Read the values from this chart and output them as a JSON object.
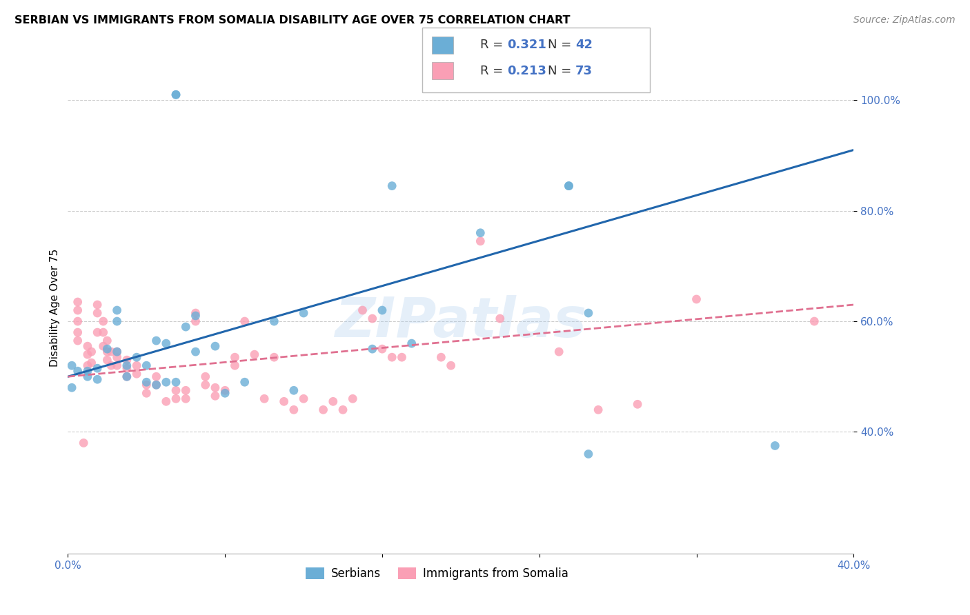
{
  "title": "SERBIAN VS IMMIGRANTS FROM SOMALIA DISABILITY AGE OVER 75 CORRELATION CHART",
  "source": "Source: ZipAtlas.com",
  "ylabel": "Disability Age Over 75",
  "x_min": 0.0,
  "x_max": 0.4,
  "y_min": 0.18,
  "y_max": 1.07,
  "x_tick_positions": [
    0.0,
    0.08,
    0.16,
    0.24,
    0.32,
    0.4
  ],
  "x_tick_labels": [
    "0.0%",
    "",
    "",
    "",
    "",
    "40.0%"
  ],
  "y_tick_positions": [
    0.4,
    0.6,
    0.8,
    1.0
  ],
  "y_tick_labels": [
    "40.0%",
    "60.0%",
    "80.0%",
    "100.0%"
  ],
  "legend_r_blue": "0.321",
  "legend_n_blue": "42",
  "legend_r_pink": "0.213",
  "legend_n_pink": "73",
  "legend_label_blue": "Serbians",
  "legend_label_pink": "Immigrants from Somalia",
  "blue_color": "#6baed6",
  "pink_color": "#fa9fb5",
  "blue_line_color": "#2166ac",
  "pink_line_color": "#e07090",
  "watermark": "ZIPatlas",
  "blue_line_x": [
    0.0,
    0.4
  ],
  "blue_line_y": [
    0.5,
    0.91
  ],
  "pink_line_x": [
    0.0,
    0.4
  ],
  "pink_line_y": [
    0.5,
    0.63
  ],
  "blue_scatter_x": [
    0.055,
    0.055,
    0.165,
    0.21,
    0.255,
    0.255,
    0.265,
    0.002,
    0.005,
    0.01,
    0.015,
    0.015,
    0.02,
    0.025,
    0.025,
    0.025,
    0.03,
    0.03,
    0.035,
    0.04,
    0.04,
    0.045,
    0.045,
    0.05,
    0.05,
    0.055,
    0.06,
    0.065,
    0.065,
    0.075,
    0.08,
    0.09,
    0.105,
    0.115,
    0.12,
    0.155,
    0.16,
    0.175,
    0.265,
    0.36,
    0.002,
    0.01
  ],
  "blue_scatter_y": [
    1.01,
    1.01,
    0.845,
    0.76,
    0.845,
    0.845,
    0.615,
    0.52,
    0.51,
    0.5,
    0.495,
    0.515,
    0.55,
    0.62,
    0.6,
    0.545,
    0.52,
    0.5,
    0.535,
    0.52,
    0.49,
    0.565,
    0.485,
    0.56,
    0.49,
    0.49,
    0.59,
    0.545,
    0.61,
    0.555,
    0.47,
    0.49,
    0.6,
    0.475,
    0.615,
    0.55,
    0.62,
    0.56,
    0.36,
    0.375,
    0.48,
    0.51
  ],
  "pink_scatter_x": [
    0.005,
    0.005,
    0.005,
    0.008,
    0.01,
    0.01,
    0.01,
    0.012,
    0.012,
    0.015,
    0.015,
    0.015,
    0.018,
    0.018,
    0.018,
    0.02,
    0.02,
    0.02,
    0.022,
    0.022,
    0.025,
    0.025,
    0.025,
    0.03,
    0.03,
    0.03,
    0.035,
    0.035,
    0.04,
    0.04,
    0.045,
    0.045,
    0.05,
    0.055,
    0.055,
    0.06,
    0.06,
    0.065,
    0.065,
    0.07,
    0.07,
    0.075,
    0.075,
    0.08,
    0.085,
    0.085,
    0.09,
    0.095,
    0.1,
    0.105,
    0.11,
    0.115,
    0.12,
    0.13,
    0.135,
    0.14,
    0.145,
    0.15,
    0.155,
    0.16,
    0.165,
    0.17,
    0.19,
    0.195,
    0.21,
    0.22,
    0.25,
    0.27,
    0.29,
    0.32,
    0.38,
    0.005,
    0.005
  ],
  "pink_scatter_y": [
    0.635,
    0.62,
    0.6,
    0.38,
    0.555,
    0.54,
    0.52,
    0.545,
    0.525,
    0.63,
    0.615,
    0.58,
    0.6,
    0.58,
    0.555,
    0.565,
    0.545,
    0.53,
    0.545,
    0.52,
    0.545,
    0.535,
    0.52,
    0.53,
    0.515,
    0.5,
    0.52,
    0.505,
    0.485,
    0.47,
    0.5,
    0.485,
    0.455,
    0.475,
    0.46,
    0.475,
    0.46,
    0.615,
    0.6,
    0.5,
    0.485,
    0.48,
    0.465,
    0.475,
    0.535,
    0.52,
    0.6,
    0.54,
    0.46,
    0.535,
    0.455,
    0.44,
    0.46,
    0.44,
    0.455,
    0.44,
    0.46,
    0.62,
    0.605,
    0.55,
    0.535,
    0.535,
    0.535,
    0.52,
    0.745,
    0.605,
    0.545,
    0.44,
    0.45,
    0.64,
    0.6,
    0.58,
    0.565
  ]
}
